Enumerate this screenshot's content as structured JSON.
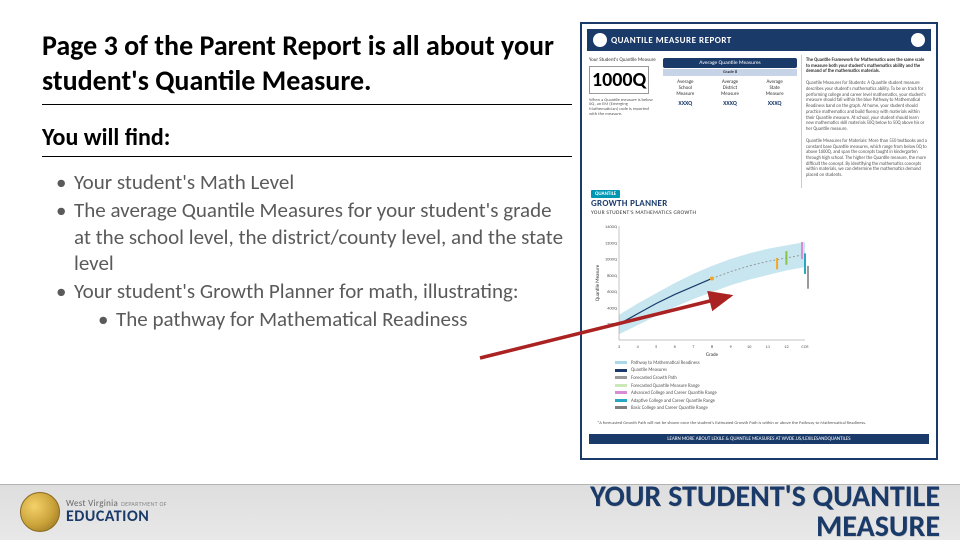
{
  "heading": "Page 3 of the Parent Report is all about your student's Quantile Measure.",
  "subheading": "You will find:",
  "bullets": [
    "Your student's Math Level",
    "The average Quantile Measures for your student's grade at the school level, the district/county level, and the state level",
    "Your student's Growth Planner for math, illustrating:"
  ],
  "sub_bullets": [
    "The pathway for Mathematical Readiness"
  ],
  "footer": {
    "logo_line1a": "West Virginia",
    "logo_line1b": "DEPARTMENT OF",
    "logo_line2": "EDUCATION",
    "title_line1": "YOUR STUDENT'S QUANTILE",
    "title_line2": "MEASURE"
  },
  "report": {
    "header_title": "QUANTILE MEASURE REPORT",
    "score_label": "Your Student's Quantile Measure",
    "big_score": "1000Q",
    "score_note": "When a Quantile measure is below 0Q, an EM (Emerging Mathematician) code is reported with the measure.",
    "avg_title": "Average Quantile Measures",
    "avg_sub": "Grade 8",
    "avg_cols": [
      {
        "label1": "Average",
        "label2": "School",
        "label3": "Measure",
        "value": "XXXQ"
      },
      {
        "label1": "Average",
        "label2": "District",
        "label3": "Measure",
        "value": "XXXQ"
      },
      {
        "label1": "Average",
        "label2": "State",
        "label3": "Measure",
        "value": "XXXQ"
      }
    ],
    "side_paras": [
      "The Quantile Framework for Mathematics uses the same scale to measure both your student's mathematics ability and the demand of the mathematics materials.",
      "Quantile Measures for Students: A Quantile student measure describes your student's mathematics ability. To be on track for performing college and career level mathematics, your student's measure should fall within the blue Pathway to Mathematical Readiness band on the graph. At home, your student should practice mathematics and build fluency with materials within their Quantile measure. At school, your student should learn new mathematics skill materials 50Q below to 50Q above his or her Quantile measure.",
      "Quantile Measures for Materials: More than 550 textbooks and a constant base Quantile measures, which range from below 0Q to above 1600Q, and span the concepts taught in kindergarten through high school. The higher the Quantile measure, the more difficult the concept. By identifying the mathematics concepts within materials, we can determine the mathematics demand placed on students."
    ],
    "growth_tag": "QUANTILE",
    "growth_title": "GROWTH PLANNER",
    "growth_sub": "YOUR STUDENT'S MATHEMATICS GROWTH",
    "chart": {
      "y_label": "Quantile Measure",
      "x_label": "Grade",
      "y_ticks": [
        "1400Q",
        "1200Q",
        "1000Q",
        "800Q",
        "600Q",
        "400Q",
        "200Q"
      ],
      "x_ticks": [
        "3",
        "4",
        "5",
        "6",
        "7",
        "8",
        "9",
        "10",
        "11",
        "12",
        "CCR"
      ],
      "pathway_color": "#a9d9e8",
      "growth_line_color": "#1a3a6a",
      "forecast_color": "#9a9a9a",
      "student_point_color": "#f5a623",
      "future_point_color": "#8bc34a",
      "interest_color": "#d98bd4",
      "adaptive_color": "#29a6c1",
      "background": "#ffffff",
      "pathway_top": [
        22,
        32,
        41,
        50,
        58,
        65,
        71,
        76,
        80,
        83,
        86
      ],
      "pathway_bottom": [
        5,
        13,
        21,
        29,
        36,
        42,
        48,
        53,
        57,
        61,
        64
      ],
      "growth_line": [
        14,
        23,
        32,
        40,
        47,
        54
      ],
      "student_points": [
        [
          5,
          54
        ]
      ],
      "forecast_line": [
        54,
        60,
        65,
        69,
        72,
        75
      ],
      "xlim": [
        0,
        10
      ],
      "ylim": [
        0,
        100
      ]
    },
    "legend": [
      {
        "color": "#a9d9e8",
        "label": "Pathway to Mathematical Readiness"
      },
      {
        "color": "#1a3a6a",
        "label": "Quantile Measures"
      },
      {
        "color": "#9a9a9a",
        "label": "Forecasted Growth Path"
      },
      {
        "color": "#cde8b8",
        "label": "Forecasted Quantile Measure Range"
      },
      {
        "color": "#d98bd4",
        "label": "Advanced College and Career Quantile Range"
      },
      {
        "color": "#29a6c1",
        "label": "Adaptive College and Career Quantile Range"
      },
      {
        "color": "#7f7f7f",
        "label": "Basic College and Career Quantile Range"
      }
    ],
    "foot_note": "*A forecasted Growth Path will not be shown once the student's Estimated Growth Path is within or above the Pathway to Mathematical Readiness.",
    "bottom_bar": "LEARN MORE ABOUT LEXILE & QUANTILE MEASURES AT WVDE.US/LEXILESANDQUANTILES"
  },
  "arrow": {
    "color": "#aa2222"
  }
}
